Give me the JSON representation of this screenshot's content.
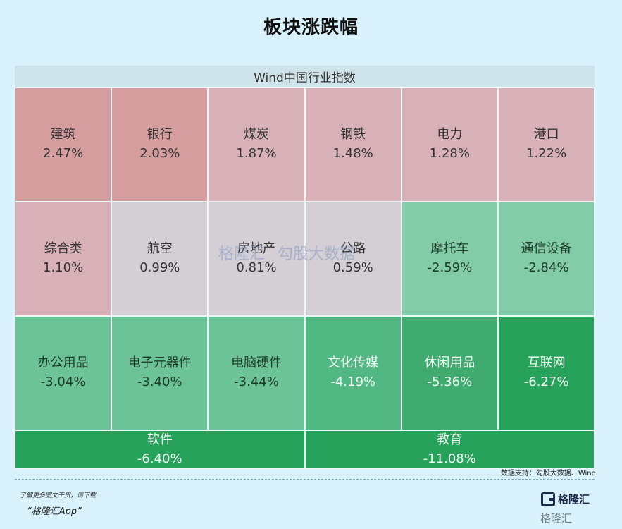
{
  "title": "板块涨跌幅",
  "chart_data": {
    "type": "heatmap",
    "header": "Wind中国行业指数",
    "cells": [
      {
        "name": "建筑",
        "value": "2.47%",
        "color": "#d69d9f"
      },
      {
        "name": "银行",
        "value": "2.03%",
        "color": "#d69d9f"
      },
      {
        "name": "煤炭",
        "value": "1.87%",
        "color": "#d7b1b7"
      },
      {
        "name": "钢铁",
        "value": "1.48%",
        "color": "#d7b1b7"
      },
      {
        "name": "电力",
        "value": "1.28%",
        "color": "#d7b1b7"
      },
      {
        "name": "港口",
        "value": "1.22%",
        "color": "#d7b1b7"
      },
      {
        "name": "综合类",
        "value": "1.10%",
        "color": "#d7b1b7"
      },
      {
        "name": "航空",
        "value": "0.99%",
        "color": "#d3cfd4"
      },
      {
        "name": "房地产",
        "value": "0.81%",
        "color": "#d3cfd4"
      },
      {
        "name": "公路",
        "value": "0.59%",
        "color": "#d3cfd4"
      },
      {
        "name": "摩托车",
        "value": "-2.59%",
        "color": "#82cca9"
      },
      {
        "name": "通信设备",
        "value": "-2.84%",
        "color": "#82cca9"
      },
      {
        "name": "办公用品",
        "value": "-3.04%",
        "color": "#6cc397"
      },
      {
        "name": "电子元器件",
        "value": "-3.40%",
        "color": "#6cc397"
      },
      {
        "name": "电脑硬件",
        "value": "-3.44%",
        "color": "#6cc397"
      },
      {
        "name": "文化传媒",
        "value": "-4.19%",
        "color": "#52b883"
      },
      {
        "name": "休闲用品",
        "value": "-5.36%",
        "color": "#3fab6f"
      },
      {
        "name": "互联网",
        "value": "-6.27%",
        "color": "#27a25a"
      },
      {
        "name": "软件",
        "value": "-6.40%",
        "color": "#27a25a"
      },
      {
        "name": "教育",
        "value": "-11.08%",
        "color": "#27a25a"
      }
    ]
  },
  "source": "数据支持：勾股大数据、Wind",
  "footer": {
    "note": "了解更多图文干货，请下载",
    "app": "“格隆汇App”"
  },
  "logo": {
    "main": "格隆汇",
    "sub": "格隆汇"
  },
  "watermark": {
    "left": "格隆汇",
    "right": "勾股大数据"
  }
}
